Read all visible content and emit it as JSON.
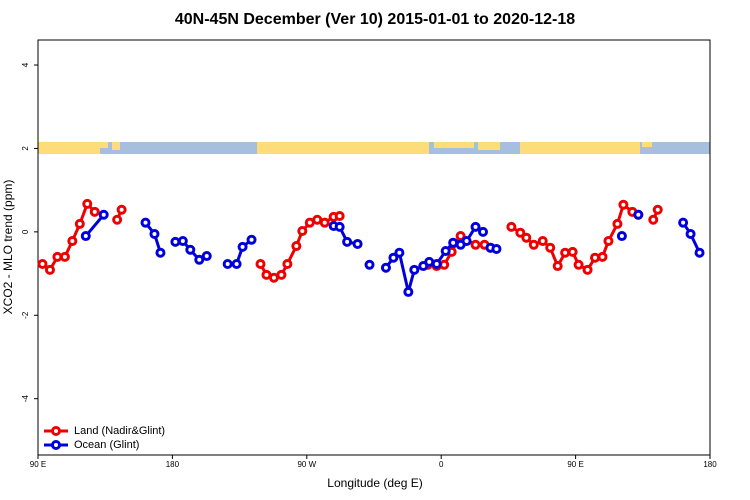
{
  "chart_data": {
    "type": "line",
    "title": "40N-45N December (Ver 10)   2015-01-01 to 2020-12-18",
    "x_label": "Longitude (deg E)",
    "y_label": "XCO2 - MLO trend (ppm)",
    "xlim": [
      90,
      540
    ],
    "xticks": [
      {
        "value": 90,
        "label": "90 E"
      },
      {
        "value": 180,
        "label": "180"
      },
      {
        "value": 270,
        "label": "90 W"
      },
      {
        "value": 360,
        "label": "0"
      },
      {
        "value": 450,
        "label": "90 E"
      },
      {
        "value": 540,
        "label": "180"
      }
    ],
    "ylim": [
      -5.35,
      4.6
    ],
    "yticks": [
      -4,
      -2,
      0,
      2,
      4
    ],
    "legend": "bottomleft",
    "series": [
      {
        "name": "Land (Nadir&Glint)",
        "color": "#ee0000",
        "x": [
          93,
          98,
          103,
          108,
          113,
          118,
          123,
          128,
          null,
          143,
          146,
          null,
          239,
          243,
          248,
          253,
          257,
          263,
          267,
          272,
          277,
          282,
          288,
          292,
          null,
          351,
          357,
          362,
          367,
          373,
          383,
          389,
          393,
          null,
          407,
          413,
          417,
          422,
          428,
          433,
          438,
          443,
          448,
          452,
          458,
          463,
          468,
          472,
          478,
          482,
          488,
          492,
          null,
          502,
          505
        ],
        "values": [
          -0.77,
          -0.91,
          -0.6,
          -0.6,
          -0.22,
          0.19,
          0.67,
          0.48,
          null,
          0.29,
          0.53,
          null,
          -0.77,
          -1.03,
          -1.1,
          -1.03,
          -0.77,
          -0.34,
          0.02,
          0.22,
          0.29,
          0.22,
          0.36,
          0.38,
          null,
          -0.79,
          -0.82,
          -0.79,
          -0.48,
          -0.1,
          -0.31,
          -0.31,
          -0.38,
          null,
          0.12,
          -0.02,
          -0.14,
          -0.31,
          -0.22,
          -0.38,
          -0.82,
          -0.5,
          -0.48,
          -0.79,
          -0.91,
          -0.62,
          -0.6,
          -0.22,
          0.19,
          0.65,
          0.48,
          0.41,
          null,
          0.29,
          0.53
        ]
      },
      {
        "name": "Ocean (Glint)",
        "color": "#0000dd",
        "x": [
          122,
          134,
          null,
          162,
          168,
          172,
          null,
          182,
          187,
          192,
          198,
          203,
          null,
          217,
          223,
          227,
          233,
          null,
          288,
          292,
          297,
          304,
          null,
          312,
          null,
          323,
          328,
          332,
          338,
          342,
          348,
          352,
          357,
          363,
          368,
          373,
          377,
          383,
          388,
          null,
          393,
          397,
          null,
          481,
          null,
          492,
          null,
          522,
          527,
          533
        ],
        "values": [
          -0.1,
          0.41,
          null,
          0.22,
          -0.05,
          -0.5,
          null,
          -0.24,
          -0.22,
          -0.43,
          -0.67,
          -0.58,
          null,
          -0.77,
          -0.77,
          -0.36,
          -0.19,
          null,
          0.14,
          0.12,
          -0.24,
          -0.29,
          null,
          -0.79,
          null,
          -0.86,
          -0.62,
          -0.5,
          -1.44,
          -0.91,
          -0.82,
          -0.72,
          -0.77,
          -0.46,
          -0.26,
          -0.31,
          -0.22,
          0.12,
          0,
          null,
          -0.38,
          -0.41,
          null,
          -0.1,
          null,
          0.41,
          null,
          0.22,
          -0.05,
          -0.5
        ]
      }
    ]
  }
}
